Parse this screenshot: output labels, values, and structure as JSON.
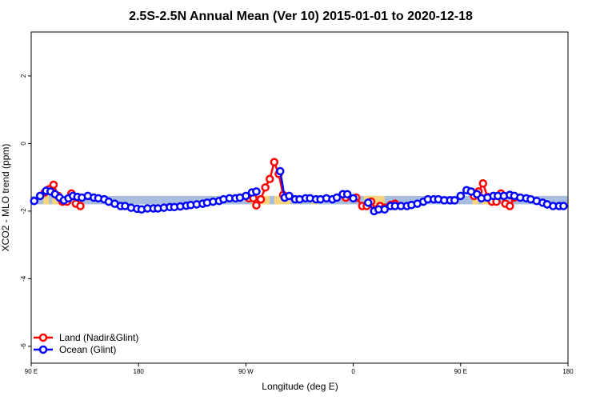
{
  "chart_data": {
    "type": "line",
    "title": "2.5S-2.5N Annual Mean (Ver 10)   2015-01-01 to 2020-12-18",
    "xlabel": "Longitude (deg E)",
    "ylabel": "XCO2 - MLO trend (ppm)",
    "xlim": [
      90,
      450
    ],
    "ylim": [
      -6.5,
      3.3
    ],
    "x_ticks": [
      {
        "value": 90,
        "label": "90 E"
      },
      {
        "value": 162,
        "label": "180"
      },
      {
        "value": 234,
        "label": "90 W"
      },
      {
        "value": 306,
        "label": "0"
      },
      {
        "value": 378,
        "label": "90 E"
      },
      {
        "value": 450,
        "label": "180"
      }
    ],
    "y_ticks": [
      {
        "value": 2,
        "label": "2"
      },
      {
        "value": 0,
        "label": "0"
      },
      {
        "value": -2,
        "label": "-2"
      },
      {
        "value": -4,
        "label": "-4"
      },
      {
        "value": -6,
        "label": "-6"
      }
    ],
    "bands": [
      {
        "x0": 90,
        "x1": 450,
        "y0": -1.8,
        "y1": -1.55,
        "color": "#a9bedf"
      },
      {
        "x0": 98,
        "x1": 102,
        "y0": -1.8,
        "y1": -1.55,
        "color": "#f9d37d"
      },
      {
        "x0": 104,
        "x1": 108,
        "y0": -1.8,
        "y1": -1.55,
        "color": "#f9d37d"
      },
      {
        "x0": 238,
        "x1": 250,
        "y0": -1.8,
        "y1": -1.55,
        "color": "#f9d37d"
      },
      {
        "x0": 253,
        "x1": 264,
        "y0": -1.8,
        "y1": -1.55,
        "color": "#f9d37d"
      },
      {
        "x0": 278,
        "x1": 282,
        "y0": -1.8,
        "y1": -1.55,
        "color": "#f9d37d"
      },
      {
        "x0": 313,
        "x1": 327,
        "y0": -1.8,
        "y1": -1.55,
        "color": "#f9d37d"
      },
      {
        "x0": 386,
        "x1": 390,
        "y0": -1.8,
        "y1": -1.55,
        "color": "#f9d37d"
      },
      {
        "x0": 392,
        "x1": 399,
        "y0": -1.8,
        "y1": -1.55,
        "color": "#f9d37d"
      }
    ],
    "series": [
      {
        "name": "Land (Nadir&Glint)",
        "color": "#ff0000",
        "segments": [
          {
            "x": [
              99,
              102,
              105,
              108,
              111,
              114,
              117,
              120,
              123
            ],
            "y": [
              -1.45,
              -1.35,
              -1.22,
              -1.55,
              -1.72,
              -1.72,
              -1.48,
              -1.78,
              -1.85
            ]
          },
          {
            "x": [
              236,
              239,
              241,
              244,
              247,
              250,
              253,
              256,
              259
            ],
            "y": [
              -1.62,
              -1.62,
              -1.83,
              -1.65,
              -1.3,
              -1.05,
              -0.55,
              -0.9,
              -1.52
            ]
          },
          {
            "x": [
              301,
              308,
              312,
              315,
              318,
              321,
              324,
              327,
              331,
              334
            ],
            "y": [
              -1.6,
              -1.6,
              -1.85,
              -1.85,
              -1.72,
              -1.95,
              -1.85,
              -1.9,
              -1.82,
              -1.78
            ]
          },
          {
            "x": [
              387,
              390,
              393,
              396,
              399,
              402,
              405,
              408,
              411,
              414
            ],
            "y": [
              -1.55,
              -1.42,
              -1.18,
              -1.58,
              -1.72,
              -1.72,
              -1.48,
              -1.78,
              -1.85,
              -1.6
            ]
          }
        ]
      },
      {
        "name": "Ocean (Glint)",
        "color": "#0000ff",
        "segments": [
          {
            "x": [
              92,
              96,
              100,
              103,
              106,
              109,
              112,
              115,
              118,
              121,
              124,
              128,
              132,
              135,
              139,
              142,
              146,
              150,
              153,
              157,
              161,
              164,
              168,
              172,
              175,
              179,
              183,
              186,
              190,
              194,
              197,
              201,
              205,
              208,
              212,
              216,
              219,
              223,
              227,
              230,
              234,
              238,
              241
            ],
            "y": [
              -1.7,
              -1.55,
              -1.4,
              -1.42,
              -1.5,
              -1.6,
              -1.68,
              -1.62,
              -1.55,
              -1.58,
              -1.6,
              -1.55,
              -1.6,
              -1.62,
              -1.65,
              -1.72,
              -1.78,
              -1.85,
              -1.85,
              -1.9,
              -1.93,
              -1.95,
              -1.92,
              -1.92,
              -1.92,
              -1.9,
              -1.88,
              -1.88,
              -1.86,
              -1.84,
              -1.82,
              -1.8,
              -1.78,
              -1.75,
              -1.72,
              -1.7,
              -1.65,
              -1.62,
              -1.62,
              -1.6,
              -1.55,
              -1.45,
              -1.42
            ]
          },
          {
            "x": [
              257,
              260,
              263,
              267,
              270,
              274,
              277,
              281,
              284,
              288,
              292,
              295,
              299,
              302,
              306
            ],
            "y": [
              -0.82,
              -1.6,
              -1.55,
              -1.65,
              -1.65,
              -1.62,
              -1.62,
              -1.65,
              -1.65,
              -1.62,
              -1.65,
              -1.6,
              -1.5,
              -1.5,
              -1.62
            ]
          },
          {
            "x": [
              316,
              320,
              323,
              327,
              331,
              334,
              338,
              342,
              345,
              349,
              353,
              356,
              360,
              363,
              367,
              371,
              374,
              378,
              382,
              385,
              389,
              392,
              396,
              400,
              403,
              407,
              411,
              414,
              418,
              422,
              425,
              429,
              433,
              436,
              440,
              444,
              447
            ],
            "y": [
              -1.75,
              -2.0,
              -1.95,
              -1.95,
              -1.85,
              -1.85,
              -1.85,
              -1.85,
              -1.82,
              -1.78,
              -1.72,
              -1.65,
              -1.65,
              -1.65,
              -1.68,
              -1.68,
              -1.68,
              -1.55,
              -1.38,
              -1.42,
              -1.5,
              -1.62,
              -1.6,
              -1.55,
              -1.55,
              -1.55,
              -1.52,
              -1.55,
              -1.6,
              -1.62,
              -1.65,
              -1.7,
              -1.75,
              -1.8,
              -1.85,
              -1.85,
              -1.85
            ]
          }
        ]
      }
    ],
    "legend": {
      "position": "bottom-left"
    }
  }
}
